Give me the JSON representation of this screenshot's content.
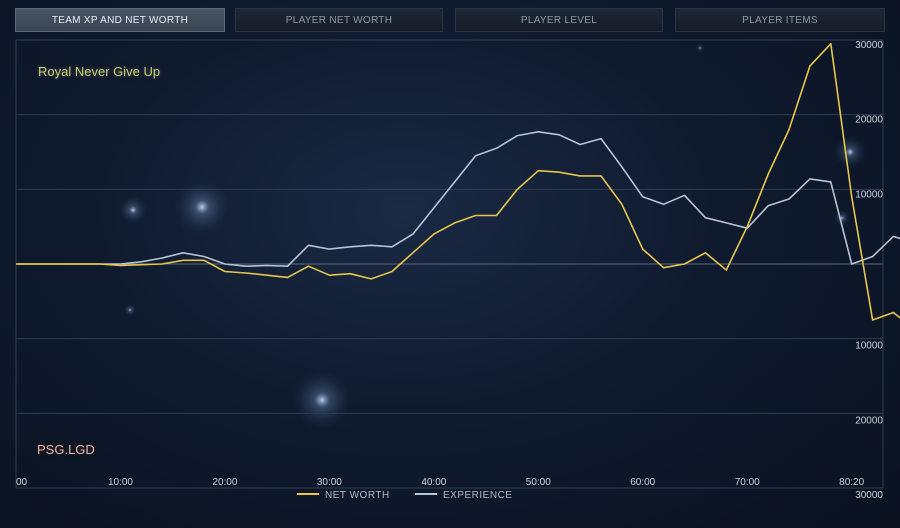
{
  "tabs": [
    {
      "label": "TEAM XP AND NET WORTH",
      "active": true
    },
    {
      "label": "PLAYER NET WORTH",
      "active": false
    },
    {
      "label": "PLAYER LEVEL",
      "active": false
    },
    {
      "label": "PLAYER ITEMS",
      "active": false
    }
  ],
  "teams": {
    "top": "Royal Never Give Up",
    "bottom": "PSG.LGD"
  },
  "legend": {
    "net_worth": "NET WORTH",
    "experience": "EXPERIENCE"
  },
  "colors": {
    "net_worth": "#e8c64a",
    "experience": "#b6c4d6",
    "background": "#0f1a2e",
    "active_tab": "#4a5564"
  },
  "chart_data": {
    "type": "line",
    "xlabel": "",
    "ylabel": "",
    "x_ticks": [
      {
        "value": 0,
        "label": "00"
      },
      {
        "value": 10,
        "label": "10:00"
      },
      {
        "value": 20,
        "label": "20:00"
      },
      {
        "value": 30,
        "label": "30:00"
      },
      {
        "value": 40,
        "label": "40:00"
      },
      {
        "value": 50,
        "label": "50:00"
      },
      {
        "value": 60,
        "label": "60:00"
      },
      {
        "value": 70,
        "label": "70:00"
      },
      {
        "value": 80,
        "label": "80:20"
      }
    ],
    "y_ticks": [
      {
        "value": 30000,
        "label": "30000"
      },
      {
        "value": 20000,
        "label": "20000"
      },
      {
        "value": 10000,
        "label": "10000"
      },
      {
        "value": -10000,
        "label": "10000"
      },
      {
        "value": -20000,
        "label": "20000"
      },
      {
        "value": -30000,
        "label": "30000"
      }
    ],
    "xlim": [
      0,
      83
    ],
    "ylim": [
      -30000,
      30000
    ],
    "grid": true,
    "legend_position": "bottom-center",
    "series": [
      {
        "name": "NET WORTH",
        "color": "#e8c64a",
        "points": [
          [
            0,
            0
          ],
          [
            2,
            0
          ],
          [
            4,
            0
          ],
          [
            6,
            0
          ],
          [
            8,
            0
          ],
          [
            10,
            -200
          ],
          [
            12,
            -100
          ],
          [
            14,
            0
          ],
          [
            16,
            500
          ],
          [
            18,
            500
          ],
          [
            20,
            -1000
          ],
          [
            22,
            -1200
          ],
          [
            24,
            -1500
          ],
          [
            26,
            -1800
          ],
          [
            28,
            -300
          ],
          [
            30,
            -1500
          ],
          [
            32,
            -1300
          ],
          [
            34,
            -2000
          ],
          [
            36,
            -1000
          ],
          [
            38,
            1500
          ],
          [
            40,
            4000
          ],
          [
            42,
            5500
          ],
          [
            44,
            6500
          ],
          [
            46,
            6500
          ],
          [
            48,
            10000
          ],
          [
            50,
            12500
          ],
          [
            52,
            12300
          ],
          [
            54,
            11800
          ],
          [
            56,
            11800
          ],
          [
            58,
            8000
          ],
          [
            60,
            2000
          ],
          [
            62,
            -500
          ],
          [
            64,
            0
          ],
          [
            66,
            1500
          ],
          [
            68,
            -800
          ],
          [
            70,
            5000
          ],
          [
            72,
            12000
          ],
          [
            74,
            18000
          ],
          [
            76,
            26500
          ],
          [
            78,
            29500
          ],
          [
            80,
            9000
          ],
          [
            82,
            -7500
          ],
          [
            84,
            -6500
          ],
          [
            86,
            -8700
          ]
        ]
      },
      {
        "name": "EXPERIENCE",
        "color": "#b6c4d6",
        "points": [
          [
            0,
            0
          ],
          [
            2,
            0
          ],
          [
            4,
            0
          ],
          [
            6,
            0
          ],
          [
            8,
            0
          ],
          [
            10,
            0
          ],
          [
            12,
            300
          ],
          [
            14,
            800
          ],
          [
            16,
            1500
          ],
          [
            18,
            1000
          ],
          [
            20,
            0
          ],
          [
            22,
            -300
          ],
          [
            24,
            -200
          ],
          [
            26,
            -300
          ],
          [
            28,
            2500
          ],
          [
            30,
            2000
          ],
          [
            32,
            2300
          ],
          [
            34,
            2500
          ],
          [
            36,
            2300
          ],
          [
            38,
            4000
          ],
          [
            40,
            7500
          ],
          [
            42,
            11000
          ],
          [
            44,
            14500
          ],
          [
            46,
            15500
          ],
          [
            48,
            17200
          ],
          [
            50,
            17700
          ],
          [
            52,
            17300
          ],
          [
            54,
            16000
          ],
          [
            56,
            16800
          ],
          [
            58,
            13000
          ],
          [
            60,
            9000
          ],
          [
            62,
            8000
          ],
          [
            64,
            9200
          ],
          [
            66,
            6200
          ],
          [
            68,
            5500
          ],
          [
            70,
            4800
          ],
          [
            72,
            7800
          ],
          [
            74,
            8700
          ],
          [
            76,
            11400
          ],
          [
            78,
            11000
          ],
          [
            80,
            0
          ],
          [
            82,
            1000
          ],
          [
            84,
            3700
          ],
          [
            86,
            2800
          ]
        ]
      }
    ]
  }
}
